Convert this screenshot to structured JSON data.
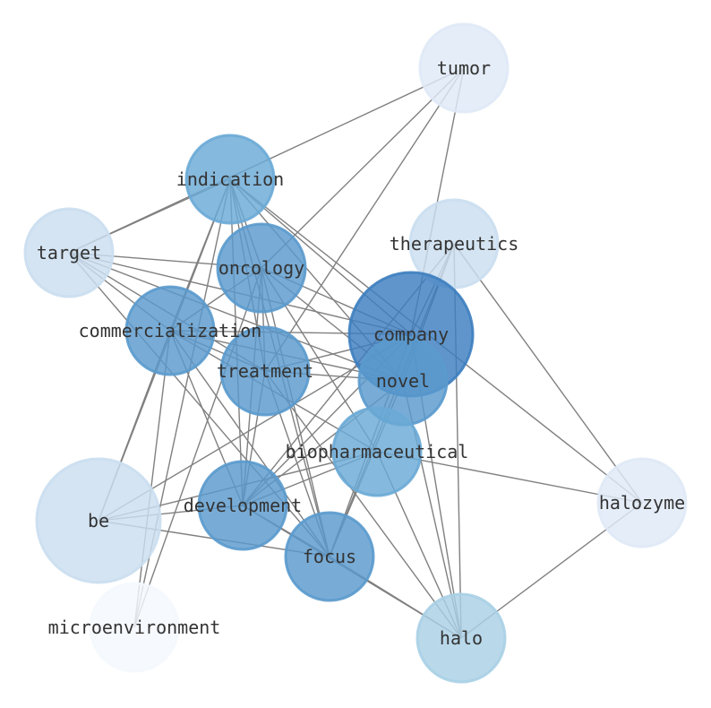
{
  "graph": {
    "edge_color": "#808080",
    "nodes": [
      {
        "id": "tumor",
        "label": "tumor",
        "color": "#dfe9f6"
      },
      {
        "id": "indication",
        "label": "indication",
        "color": "#6aaad6"
      },
      {
        "id": "therapeutics",
        "label": "therapeutics",
        "color": "#cadef0"
      },
      {
        "id": "target",
        "label": "target",
        "color": "#cadef0"
      },
      {
        "id": "oncology",
        "label": "oncology",
        "color": "#5a9acd"
      },
      {
        "id": "company",
        "label": "company",
        "color": "#3d7ebf"
      },
      {
        "id": "commercialization",
        "label": "commercialization",
        "color": "#5a9acd"
      },
      {
        "id": "treatment",
        "label": "treatment",
        "color": "#5a9acd"
      },
      {
        "id": "novel",
        "label": "novel",
        "color": "#5a9acd"
      },
      {
        "id": "biopharmaceutical",
        "label": "biopharmaceutical",
        "color": "#6aaad6"
      },
      {
        "id": "halozyme",
        "label": "halozyme",
        "color": "#dfe9f6"
      },
      {
        "id": "be",
        "label": "be",
        "color": "#cadef0"
      },
      {
        "id": "development",
        "label": "development",
        "color": "#5a9acd"
      },
      {
        "id": "focus",
        "label": "focus",
        "color": "#5a9acd"
      },
      {
        "id": "microenvironment",
        "label": "microenvironment",
        "color": "#f4f8fd"
      },
      {
        "id": "halo",
        "label": "halo",
        "color": "#a9d0e5"
      }
    ],
    "edges": [
      [
        "tumor",
        "target"
      ],
      [
        "tumor",
        "oncology"
      ],
      [
        "tumor",
        "treatment"
      ],
      [
        "tumor",
        "company"
      ],
      [
        "indication",
        "target"
      ],
      [
        "indication",
        "oncology"
      ],
      [
        "indication",
        "commercialization"
      ],
      [
        "indication",
        "treatment"
      ],
      [
        "indication",
        "development"
      ],
      [
        "indication",
        "focus"
      ],
      [
        "indication",
        "novel"
      ],
      [
        "indication",
        "company"
      ],
      [
        "indication",
        "halozyme"
      ],
      [
        "indication",
        "microenvironment"
      ],
      [
        "indication",
        "be"
      ],
      [
        "target",
        "oncology"
      ],
      [
        "target",
        "commercialization"
      ],
      [
        "target",
        "treatment"
      ],
      [
        "target",
        "novel"
      ],
      [
        "target",
        "company"
      ],
      [
        "target",
        "focus"
      ],
      [
        "oncology",
        "commercialization"
      ],
      [
        "oncology",
        "treatment"
      ],
      [
        "oncology",
        "development"
      ],
      [
        "oncology",
        "company"
      ],
      [
        "oncology",
        "novel"
      ],
      [
        "oncology",
        "focus"
      ],
      [
        "oncology",
        "microenvironment"
      ],
      [
        "oncology",
        "biopharmaceutical"
      ],
      [
        "commercialization",
        "treatment"
      ],
      [
        "commercialization",
        "company"
      ],
      [
        "commercialization",
        "novel"
      ],
      [
        "commercialization",
        "development"
      ],
      [
        "commercialization",
        "focus"
      ],
      [
        "commercialization",
        "be"
      ],
      [
        "commercialization",
        "microenvironment"
      ],
      [
        "commercialization",
        "biopharmaceutical"
      ],
      [
        "treatment",
        "company"
      ],
      [
        "treatment",
        "novel"
      ],
      [
        "treatment",
        "development"
      ],
      [
        "treatment",
        "focus"
      ],
      [
        "treatment",
        "halo"
      ],
      [
        "therapeutics",
        "company"
      ],
      [
        "therapeutics",
        "novel"
      ],
      [
        "therapeutics",
        "focus"
      ],
      [
        "therapeutics",
        "development"
      ],
      [
        "therapeutics",
        "halo"
      ],
      [
        "therapeutics",
        "halozyme"
      ],
      [
        "company",
        "development"
      ],
      [
        "company",
        "focus"
      ],
      [
        "company",
        "be"
      ],
      [
        "company",
        "halo"
      ],
      [
        "novel",
        "development"
      ],
      [
        "novel",
        "focus"
      ],
      [
        "novel",
        "halo"
      ],
      [
        "biopharmaceutical",
        "halozyme"
      ],
      [
        "biopharmaceutical",
        "halo"
      ],
      [
        "biopharmaceutical",
        "development"
      ],
      [
        "biopharmaceutical",
        "be"
      ],
      [
        "development",
        "be"
      ],
      [
        "development",
        "focus"
      ],
      [
        "development",
        "halo"
      ],
      [
        "be",
        "focus"
      ],
      [
        "focus",
        "halo"
      ],
      [
        "halo",
        "halozyme"
      ]
    ]
  }
}
